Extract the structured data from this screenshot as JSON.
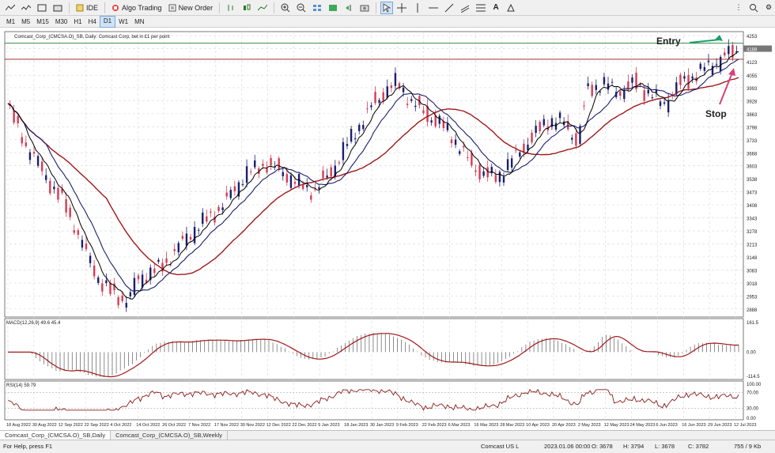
{
  "toolbar": {
    "ide_label": "IDE",
    "algo_label": "Algo Trading",
    "order_label": "New Order"
  },
  "timeframes": [
    "M1",
    "M5",
    "M15",
    "M30",
    "H1",
    "H4",
    "D1",
    "W1",
    "MN"
  ],
  "active_timeframe": "D1",
  "chart": {
    "header": "Comcast_Corp_(CMCSA.O)_SB, Daily:  Comcast Corp, bet in £1 per point",
    "price_ticks": [
      "4253",
      "4188",
      "4123",
      "4055",
      "3993",
      "3928",
      "3863",
      "3798",
      "3733",
      "3668",
      "3603",
      "3538",
      "3473",
      "3408",
      "3343",
      "3278",
      "3213",
      "3148",
      "3083",
      "3018",
      "2953",
      "2888"
    ],
    "price_current": "4188",
    "date_ticks": [
      "18 Aug 2022",
      "30 Aug 2022",
      "12 Sep 2022",
      "22 Sep 2022",
      "4 Oct 2022",
      "14 Oct 2022",
      "26 Oct 2022",
      "7 Nov 2022",
      "17 Nov 2022",
      "30 Nov 2022",
      "12 Dec 2022",
      "22 Dec 2022",
      "5 Jan 2023",
      "18 Jan 2023",
      "30 Jan 2023",
      "9 Feb 2023",
      "22 Feb 2023",
      "6 Mar 2023",
      "16 Mar 2023",
      "28 Mar 2023",
      "10 Apr 2023",
      "20 Apr 2023",
      "2 May 2023",
      "12 May 2023",
      "24 May 2023",
      "6 Jun 2023",
      "16 Jun 2023",
      "29 Jun 2023",
      "12 Jul 2023"
    ],
    "entry_label": "Entry",
    "stop_label": "Stop",
    "colors": {
      "up": "#1a1f6e",
      "down": "#d43c52",
      "ma_slow": "#a01818",
      "ma_mid": "#1a1f6e",
      "ma_fast": "#000000",
      "level": "#8b1a1a",
      "green_level": "#1a7a2a",
      "arrow_green": "#1aa06a",
      "arrow_pink": "#d6407a"
    }
  },
  "macd": {
    "label": "MACD(12,26,9) 49.6 45.4",
    "ticks": [
      "161.5",
      "0.00",
      "-114.5"
    ]
  },
  "rsi": {
    "label": "RSI(14) 59.79",
    "ticks": [
      "100.00",
      "70.00",
      "30.00",
      "0.00"
    ]
  },
  "chart_tabs": [
    "Comcast_Corp_(CMCSA.O)_SB,Daily",
    "Comcast_Corp_(CMCSA.O)_SB,Weekly"
  ],
  "status": {
    "help": "For Help, press F1",
    "symbol": "Comcast US L",
    "datetime": "2023.01.06 00:00",
    "open": "O: 3678",
    "high": "H: 3794",
    "low": "L: 3678",
    "close": "C: 3782",
    "traffic": "755 / 9 Kb"
  }
}
